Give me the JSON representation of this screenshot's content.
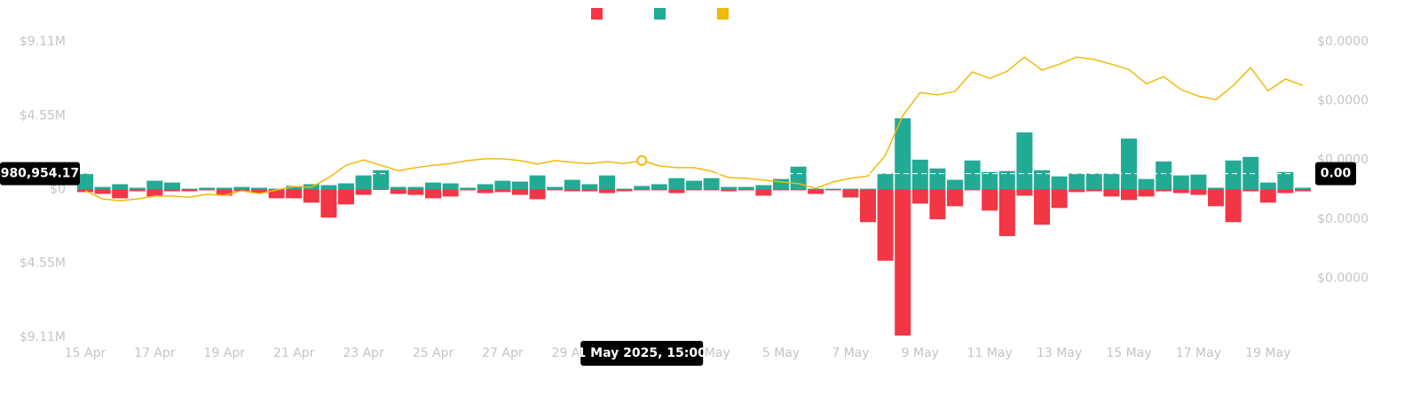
{
  "chart_data": {
    "type": "bar",
    "categories": [
      "15 Apr",
      null,
      null,
      null,
      "17 Apr",
      null,
      null,
      null,
      "19 Apr",
      null,
      null,
      null,
      "21 Apr",
      null,
      null,
      null,
      "23 Apr",
      null,
      null,
      null,
      "25 Apr",
      null,
      null,
      null,
      "27 Apr",
      null,
      null,
      null,
      "29 Apr",
      null,
      null,
      null,
      "1 May",
      null,
      null,
      null,
      "3 May",
      null,
      null,
      null,
      "5 May",
      null,
      null,
      null,
      "7 May",
      null,
      null,
      null,
      "9 May",
      null,
      null,
      null,
      "11 May",
      null,
      null,
      null,
      "13 May",
      null,
      null,
      null,
      "15 May",
      null,
      null,
      null,
      "17 May",
      null,
      null,
      null,
      "19 May",
      null,
      null
    ],
    "series": [
      {
        "color": "#f23645",
        "values": [
          -0.16,
          -0.27,
          -0.54,
          -0.11,
          -0.43,
          -0.11,
          -0.11,
          -0.05,
          -0.38,
          -0.11,
          -0.22,
          -0.54,
          -0.54,
          -0.81,
          -1.73,
          -0.92,
          -0.33,
          0,
          -0.27,
          -0.33,
          -0.54,
          -0.43,
          -0.05,
          -0.22,
          -0.16,
          -0.33,
          -0.6,
          -0.05,
          -0.11,
          -0.11,
          -0.22,
          -0.11,
          -0.05,
          -0.05,
          -0.22,
          -0.05,
          -0.05,
          -0.11,
          -0.05,
          -0.38,
          -0.05,
          -0.05,
          -0.27,
          -0.05,
          -0.49,
          -2.01,
          -4.39,
          -9.0,
          -0.87,
          -1.84,
          -1.03,
          -0.05,
          -1.3,
          -2.87,
          -0.38,
          -2.17,
          -1.14,
          -0.16,
          -0.11,
          -0.43,
          -0.65,
          -0.43,
          -0.11,
          -0.22,
          -0.33,
          -1.03,
          -2.01,
          -0.11,
          -0.81,
          -0.22,
          -0.11
        ]
      },
      {
        "color": "#22ab94",
        "values": [
          0.98,
          0.16,
          0.33,
          0.11,
          0.54,
          0.43,
          0.05,
          0.11,
          0.11,
          0.16,
          0.11,
          0.05,
          0.22,
          0.33,
          0.27,
          0.38,
          0.87,
          1.19,
          0.16,
          0.16,
          0.43,
          0.38,
          0.11,
          0.33,
          0.54,
          0.49,
          0.87,
          0.16,
          0.6,
          0.33,
          0.87,
          0.05,
          0.22,
          0.33,
          0.7,
          0.54,
          0.7,
          0.16,
          0.16,
          0.27,
          0.65,
          1.41,
          0.05,
          0.05,
          0.05,
          0.05,
          0.98,
          4.39,
          1.84,
          1.3,
          0.6,
          1.79,
          1.08,
          1.14,
          3.52,
          1.19,
          0.81,
          0.98,
          0.98,
          0.98,
          3.14,
          0.65,
          1.73,
          0.87,
          0.92,
          0.11,
          1.79,
          2.01,
          0.43,
          1.08,
          0.11
        ]
      },
      {
        "color": "#f0b90b",
        "type": "line",
        "axis": "y2",
        "values": [
          2.48e-05,
          2.34e-05,
          2.31e-05,
          2.34e-05,
          2.39e-05,
          2.39e-05,
          2.37e-05,
          2.42e-05,
          2.4e-05,
          2.48e-05,
          2.43e-05,
          2.49e-05,
          2.55e-05,
          2.54e-05,
          2.7e-05,
          2.91e-05,
          3e-05,
          2.91e-05,
          2.82e-05,
          2.87e-05,
          2.91e-05,
          2.94e-05,
          2.99e-05,
          3.02e-05,
          3.02e-05,
          2.99e-05,
          2.93e-05,
          2.99e-05,
          2.96e-05,
          2.94e-05,
          2.97e-05,
          2.94e-05,
          2.99e-05,
          2.9e-05,
          2.87e-05,
          2.87e-05,
          2.81e-05,
          2.7e-05,
          2.69e-05,
          2.66e-05,
          2.63e-05,
          2.6e-05,
          2.52e-05,
          2.63e-05,
          2.69e-05,
          2.73e-05,
          3.08e-05,
          3.75e-05,
          4.14e-05,
          4.1e-05,
          4.16e-05,
          4.49e-05,
          4.38e-05,
          4.5e-05,
          4.74e-05,
          4.52e-05,
          4.62e-05,
          4.74e-05,
          4.7e-05,
          4.62e-05,
          4.53e-05,
          4.29e-05,
          4.41e-05,
          4.19e-05,
          4.08e-05,
          4.02e-05,
          4.26e-05,
          4.56e-05,
          4.17e-05,
          4.37e-05,
          4.26e-05
        ]
      }
    ],
    "ylim": [
      -9.11,
      9.11
    ],
    "yticks": [
      {
        "value": 9.11,
        "label": "$9.11M"
      },
      {
        "value": 4.55,
        "label": "$4.55M"
      },
      {
        "value": 0,
        "label": "$0"
      },
      {
        "value": -4.55,
        "label": "$4.55M"
      },
      {
        "value": -9.11,
        "label": "$9.11M"
      }
    ],
    "y2lim": [
      0,
      5e-05
    ],
    "y2ticks": [
      {
        "value": 5e-05,
        "label": "$0.0000"
      },
      {
        "value": 4e-05,
        "label": "$0.0000"
      },
      {
        "value": 3e-05,
        "label": "$0.0000"
      },
      {
        "value": 2e-05,
        "label": "$0.0000"
      },
      {
        "value": 1e-05,
        "label": "$0.0000"
      }
    ],
    "crosshair": {
      "x_label": "1 May 2025, 15:00",
      "y": 0.98095417,
      "y_label": "980,954.17",
      "y2_label": "0.00"
    }
  }
}
